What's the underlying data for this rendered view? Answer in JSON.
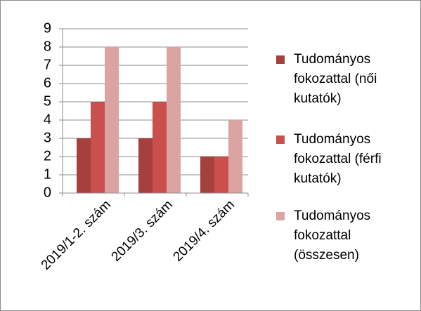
{
  "chart_data": {
    "type": "bar",
    "categories": [
      "2019/1-2. szám",
      "2019/3. szám",
      "2019/4. szám"
    ],
    "series": [
      {
        "name": "Tudományos fokozattal (női kutatók)",
        "color": "#a5403e",
        "values": [
          3,
          3,
          2
        ]
      },
      {
        "name": "Tudományos fokozattal (férfi kutatók)",
        "color": "#c9504d",
        "values": [
          5,
          5,
          2
        ]
      },
      {
        "name": "Tudományos fokozattal (összesen)",
        "color": "#dba4a3",
        "values": [
          8,
          8,
          4
        ]
      }
    ],
    "ylim": [
      0,
      9
    ],
    "yticks": [
      0,
      1,
      2,
      3,
      4,
      5,
      6,
      7,
      8,
      9
    ],
    "grid": true,
    "legend": "right"
  }
}
